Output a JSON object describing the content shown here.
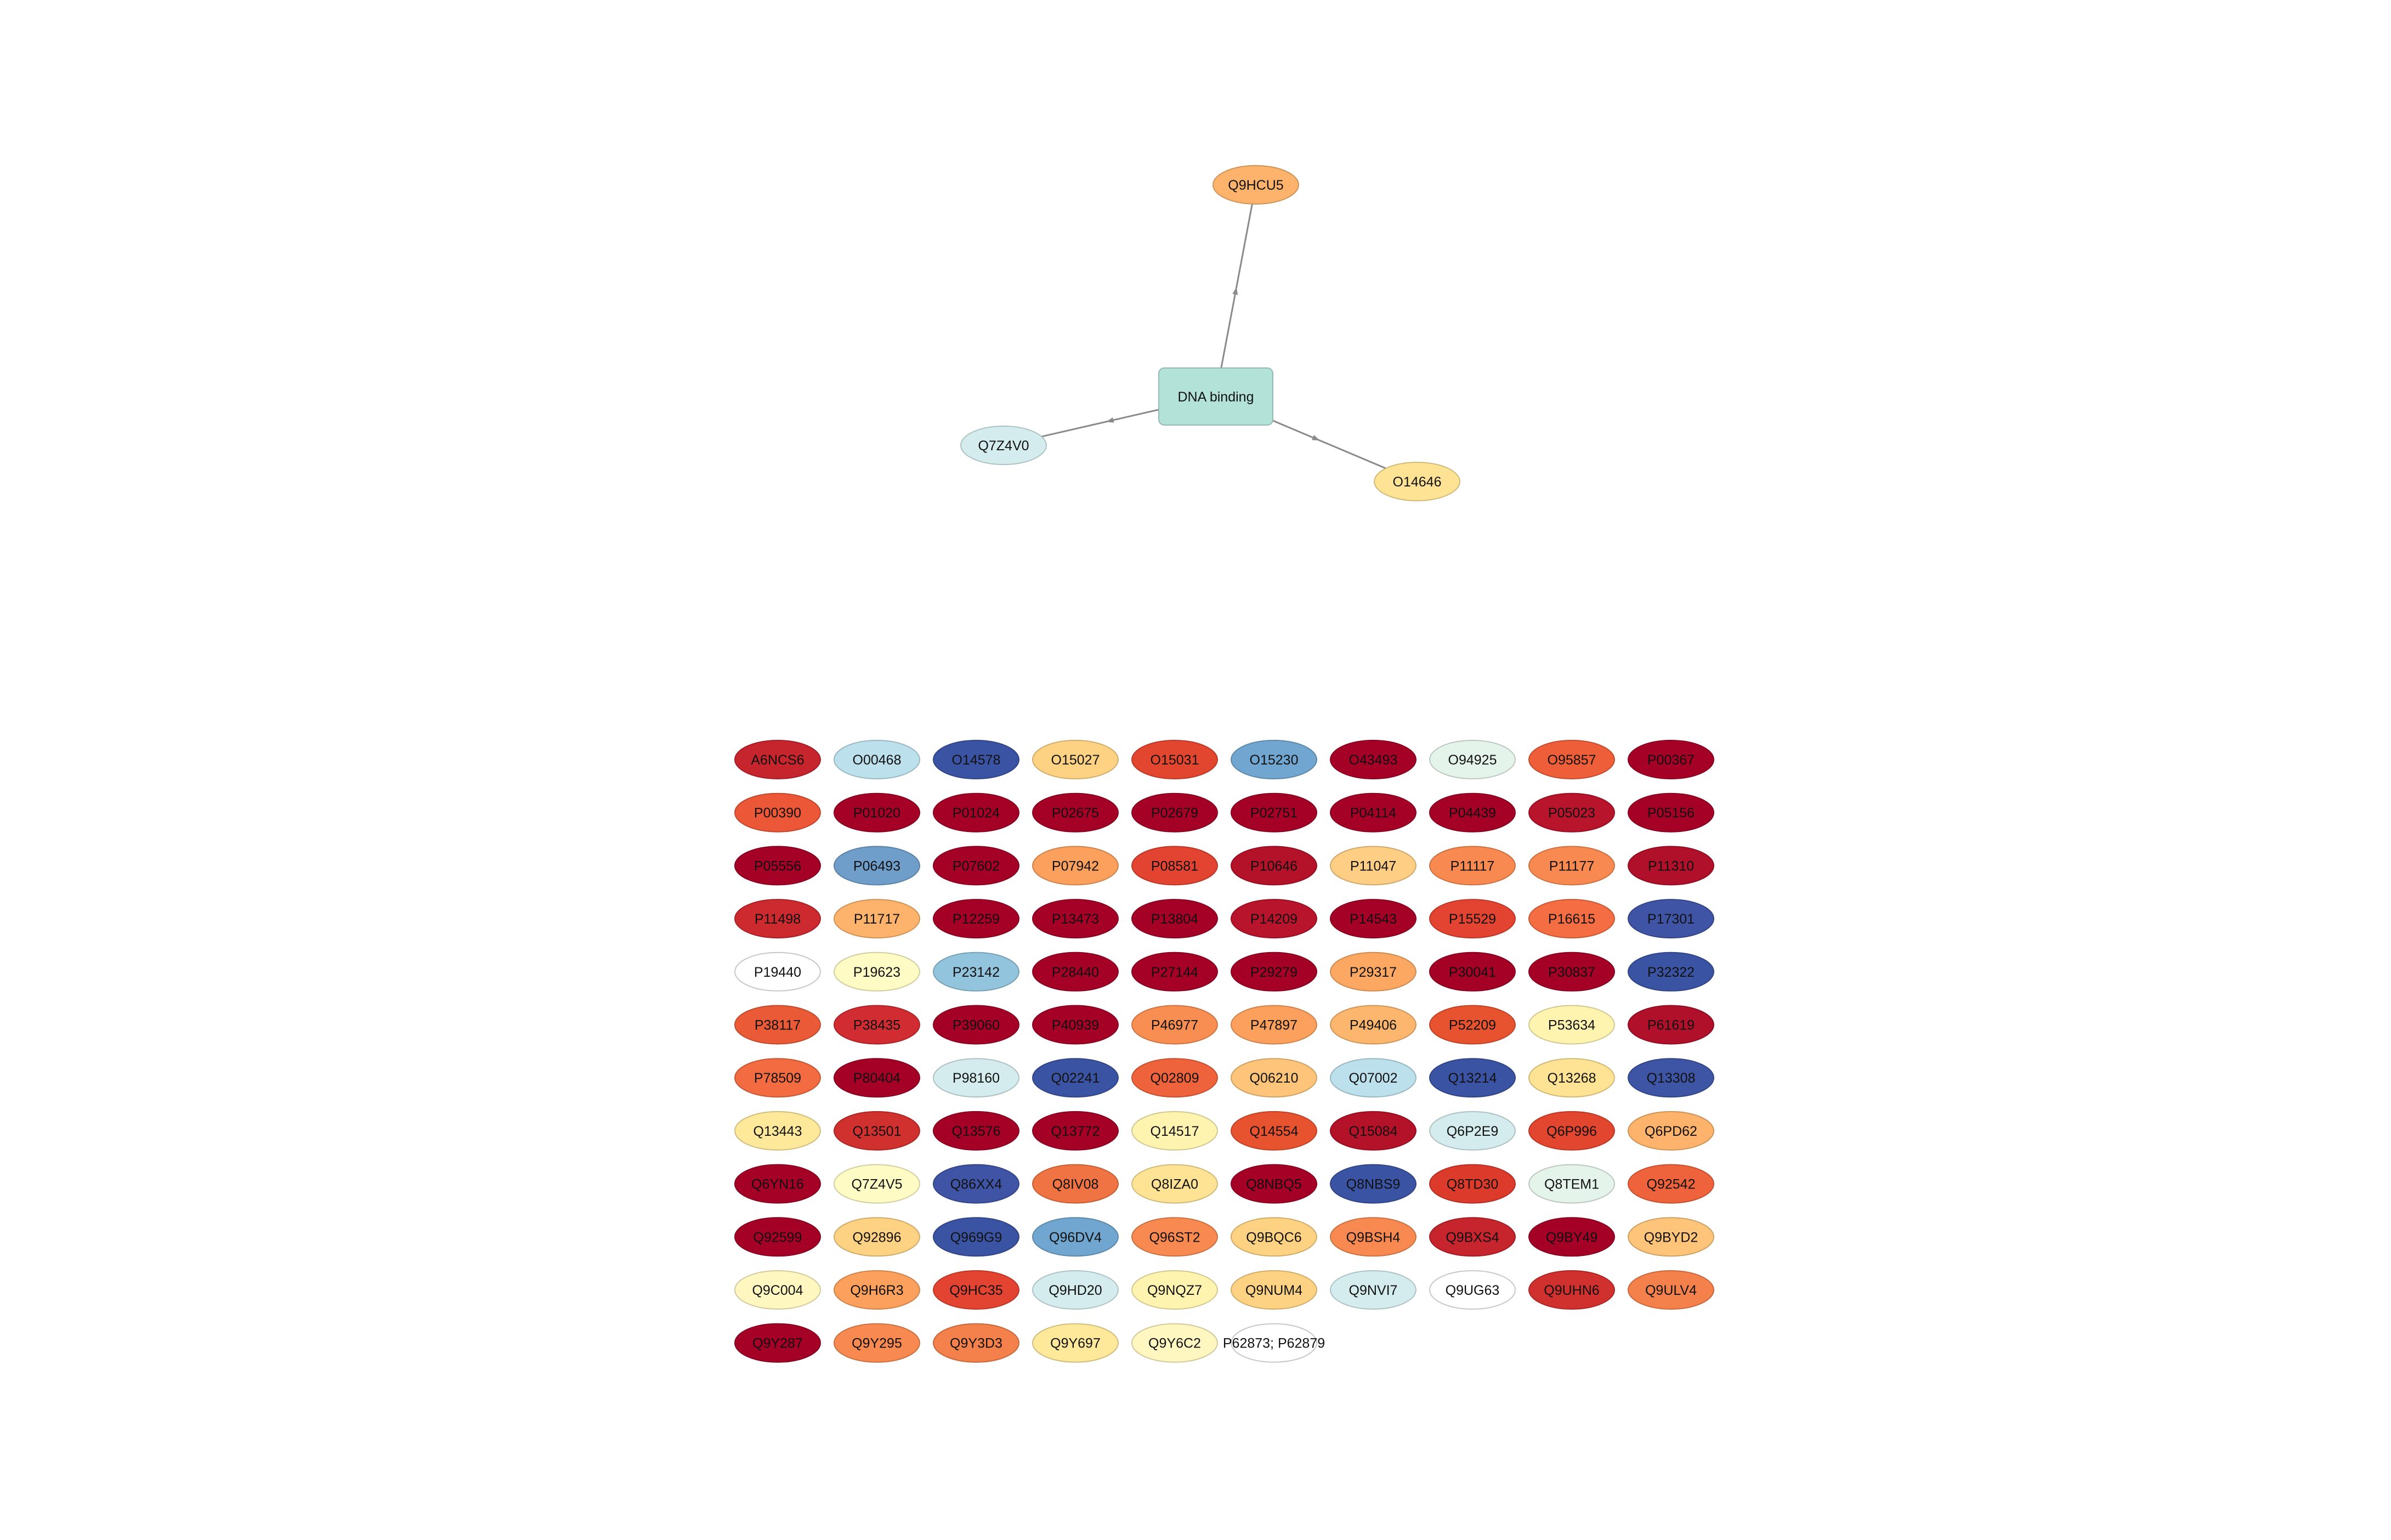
{
  "network": {
    "center": {
      "label": "DNA binding",
      "color": "#b3e2d9"
    },
    "neighbors": [
      {
        "label": "Q9HCU5",
        "color": "#fdb36b"
      },
      {
        "label": "Q7Z4V0",
        "color": "#d5ecee"
      },
      {
        "label": "O14646",
        "color": "#fee394"
      }
    ]
  },
  "grid": {
    "nodes": [
      {
        "label": "A6NCS6",
        "color": "#c6252d"
      },
      {
        "label": "O00468",
        "color": "#bce0ec"
      },
      {
        "label": "O14578",
        "color": "#3b53a3"
      },
      {
        "label": "O15027",
        "color": "#fed283"
      },
      {
        "label": "O15031",
        "color": "#e3462f"
      },
      {
        "label": "O15230",
        "color": "#70a6cf"
      },
      {
        "label": "O43493",
        "color": "#a50026"
      },
      {
        "label": "O94925",
        "color": "#e5f4ea"
      },
      {
        "label": "O95857",
        "color": "#ee5e39"
      },
      {
        "label": "P00367",
        "color": "#a50026"
      },
      {
        "label": "P00390",
        "color": "#ec5737"
      },
      {
        "label": "P01020",
        "color": "#a50026"
      },
      {
        "label": "P01024",
        "color": "#a50026"
      },
      {
        "label": "P02675",
        "color": "#a50026"
      },
      {
        "label": "P02679",
        "color": "#a50026"
      },
      {
        "label": "P02751",
        "color": "#a50026"
      },
      {
        "label": "P04114",
        "color": "#a50026"
      },
      {
        "label": "P04439",
        "color": "#a50026"
      },
      {
        "label": "P05023",
        "color": "#b8142b"
      },
      {
        "label": "P05156",
        "color": "#a50026"
      },
      {
        "label": "P05556",
        "color": "#a50026"
      },
      {
        "label": "P06493",
        "color": "#6f9ecb"
      },
      {
        "label": "P07602",
        "color": "#a50026"
      },
      {
        "label": "P07942",
        "color": "#fba05d"
      },
      {
        "label": "P08581",
        "color": "#e34431"
      },
      {
        "label": "P10646",
        "color": "#b41229"
      },
      {
        "label": "P11047",
        "color": "#fdce84"
      },
      {
        "label": "P11117",
        "color": "#f88a51"
      },
      {
        "label": "P11177",
        "color": "#f88a51"
      },
      {
        "label": "P11310",
        "color": "#b0102a"
      },
      {
        "label": "P11498",
        "color": "#cc2a2f"
      },
      {
        "label": "P11717",
        "color": "#fdb36b"
      },
      {
        "label": "P12259",
        "color": "#a50026"
      },
      {
        "label": "P13473",
        "color": "#a50026"
      },
      {
        "label": "P13804",
        "color": "#a50026"
      },
      {
        "label": "P14209",
        "color": "#b8142b"
      },
      {
        "label": "P14543",
        "color": "#a50026"
      },
      {
        "label": "P15529",
        "color": "#e34431"
      },
      {
        "label": "P16615",
        "color": "#f46d43"
      },
      {
        "label": "P17301",
        "color": "#3f54a4"
      },
      {
        "label": "P19440",
        "color": "#ffffff"
      },
      {
        "label": "P19623",
        "color": "#fffbc4"
      },
      {
        "label": "P23142",
        "color": "#92c4dd"
      },
      {
        "label": "P28440",
        "color": "#a50026"
      },
      {
        "label": "P27144",
        "color": "#a50026"
      },
      {
        "label": "P29279",
        "color": "#a50026"
      },
      {
        "label": "P29317",
        "color": "#fca862"
      },
      {
        "label": "P30041",
        "color": "#a50026"
      },
      {
        "label": "P30837",
        "color": "#a50026"
      },
      {
        "label": "P32322",
        "color": "#3b53a3"
      },
      {
        "label": "P38117",
        "color": "#ea5a37"
      },
      {
        "label": "P38435",
        "color": "#d02c31"
      },
      {
        "label": "P39060",
        "color": "#a50026"
      },
      {
        "label": "P40939",
        "color": "#a50026"
      },
      {
        "label": "P46977",
        "color": "#f98e52"
      },
      {
        "label": "P47897",
        "color": "#fba05d"
      },
      {
        "label": "P49406",
        "color": "#fcb66e"
      },
      {
        "label": "P52209",
        "color": "#e8532f"
      },
      {
        "label": "P53634",
        "color": "#fff3b0"
      },
      {
        "label": "P61619",
        "color": "#b0102a"
      },
      {
        "label": "P78509",
        "color": "#f26b41"
      },
      {
        "label": "P80404",
        "color": "#a50026"
      },
      {
        "label": "P98160",
        "color": "#d5ecee"
      },
      {
        "label": "Q02241",
        "color": "#3b53a3"
      },
      {
        "label": "Q02809",
        "color": "#ef633c"
      },
      {
        "label": "Q06210",
        "color": "#fdc47a"
      },
      {
        "label": "Q07002",
        "color": "#bce0ec"
      },
      {
        "label": "Q13214",
        "color": "#3b53a3"
      },
      {
        "label": "Q13268",
        "color": "#fee394"
      },
      {
        "label": "Q13308",
        "color": "#3d55a4"
      },
      {
        "label": "Q13443",
        "color": "#fee89a"
      },
      {
        "label": "Q13501",
        "color": "#d0302e"
      },
      {
        "label": "Q13576",
        "color": "#a50026"
      },
      {
        "label": "Q13772",
        "color": "#a50026"
      },
      {
        "label": "Q14517",
        "color": "#fff3b0"
      },
      {
        "label": "Q14554",
        "color": "#e8532f"
      },
      {
        "label": "Q15084",
        "color": "#b41229"
      },
      {
        "label": "Q6P2E9",
        "color": "#d5ecee"
      },
      {
        "label": "Q6P996",
        "color": "#e3462f"
      },
      {
        "label": "Q6PD62",
        "color": "#fdb36b"
      },
      {
        "label": "Q6YN16",
        "color": "#a50026"
      },
      {
        "label": "Q7Z4V5",
        "color": "#fffbc4"
      },
      {
        "label": "Q86XX4",
        "color": "#3f54a4"
      },
      {
        "label": "Q8IV08",
        "color": "#f07443"
      },
      {
        "label": "Q8IZA0",
        "color": "#fee394"
      },
      {
        "label": "Q8NBQ5",
        "color": "#a50026"
      },
      {
        "label": "Q8NBS9",
        "color": "#3b53a3"
      },
      {
        "label": "Q8TD30",
        "color": "#dc3b2c"
      },
      {
        "label": "Q8TEM1",
        "color": "#e5f4ea"
      },
      {
        "label": "Q92542",
        "color": "#ef633c"
      },
      {
        "label": "Q92599",
        "color": "#a50026"
      },
      {
        "label": "Q92896",
        "color": "#fed283"
      },
      {
        "label": "Q969G9",
        "color": "#3b53a3"
      },
      {
        "label": "Q96DV4",
        "color": "#70a6cf"
      },
      {
        "label": "Q96ST2",
        "color": "#f88a51"
      },
      {
        "label": "Q9BQC6",
        "color": "#fed283"
      },
      {
        "label": "Q9BSH4",
        "color": "#f88a51"
      },
      {
        "label": "Q9BXS4",
        "color": "#c6252d"
      },
      {
        "label": "Q9BY49",
        "color": "#a50026"
      },
      {
        "label": "Q9BYD2",
        "color": "#fdc47a"
      },
      {
        "label": "Q9C004",
        "color": "#fff6c0"
      },
      {
        "label": "Q9H6R3",
        "color": "#fba05d"
      },
      {
        "label": "Q9HC35",
        "color": "#e34431"
      },
      {
        "label": "Q9HD20",
        "color": "#d5ecee"
      },
      {
        "label": "Q9NQZ7",
        "color": "#fff3b0"
      },
      {
        "label": "Q9NUM4",
        "color": "#fed283"
      },
      {
        "label": "Q9NVI7",
        "color": "#d5ecee"
      },
      {
        "label": "Q9UG63",
        "color": "#ffffff"
      },
      {
        "label": "Q9UHN6",
        "color": "#d0302e"
      },
      {
        "label": "Q9ULV4",
        "color": "#f4804b"
      },
      {
        "label": "Q9Y287",
        "color": "#a50026"
      },
      {
        "label": "Q9Y295",
        "color": "#f88a51"
      },
      {
        "label": "Q9Y3D3",
        "color": "#f4804b"
      },
      {
        "label": "Q9Y697",
        "color": "#fee89a"
      },
      {
        "label": "Q9Y6C2",
        "color": "#fff6c0"
      },
      {
        "label": "P62873; P62879",
        "color": "#ffffff"
      }
    ]
  }
}
